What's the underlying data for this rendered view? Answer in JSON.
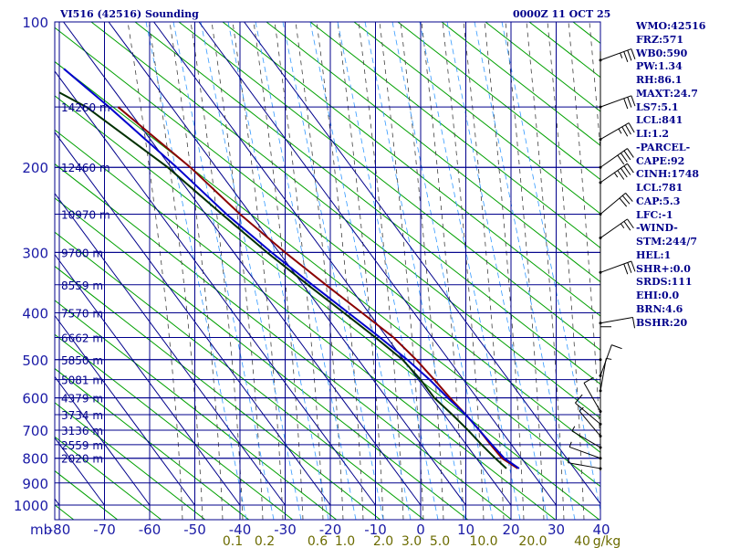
{
  "header": {
    "title": "VI516 (42516) Sounding",
    "datetime": "0000Z 11 OCT 25"
  },
  "stats": [
    "WMO:42516",
    "FRZ:571",
    "WB0:590",
    "PW:1.34",
    "RH:86.1",
    "MAXT:24.7",
    "LS7:5.1",
    "LCL:841",
    "LI:1.2",
    "-PARCEL-",
    "CAPE:92",
    "CINH:1748",
    "LCL:781",
    "CAP:5.3",
    "LFC:-1",
    "-WIND-",
    "STM:244/7",
    "HEL:1",
    "SHR+:0.0",
    "SRDS:111",
    "EHI:0.0",
    "BRN:4.6",
    "BSHR:20"
  ],
  "colors": {
    "grid": "#00008b",
    "isotherm": "#00008b",
    "dry_adiabat": "#00a000",
    "moist_adiabat": "#404040",
    "mixing_ratio": "#3399ff",
    "temperature": "#8b0000",
    "parcel": "#0000cd",
    "dewpoint": "#003000",
    "mixing_label": "#6b6b00",
    "background": "#ffffff"
  },
  "chart_data": {
    "type": "line",
    "subtype": "skew-t log-p sounding",
    "y_axis": {
      "unit_label": "mb",
      "ticks": [
        100,
        200,
        300,
        400,
        500,
        600,
        700,
        800,
        900,
        1000
      ],
      "scale": "log",
      "range": [
        100,
        1000
      ]
    },
    "x_axis": {
      "unit": "C",
      "ticks": [
        -80,
        -70,
        -60,
        -50,
        -40,
        -30,
        -20,
        -10,
        0,
        10,
        20,
        30,
        40
      ],
      "range": [
        -80,
        40
      ]
    },
    "height_labels": [
      {
        "p": 150,
        "label": "14260 m"
      },
      {
        "p": 200,
        "label": "12460 m"
      },
      {
        "p": 250,
        "label": "10970 m"
      },
      {
        "p": 300,
        "label": "9700 m"
      },
      {
        "p": 350,
        "label": "8559 m"
      },
      {
        "p": 400,
        "label": "7570 m"
      },
      {
        "p": 450,
        "label": "6662 m"
      },
      {
        "p": 500,
        "label": "5850 m"
      },
      {
        "p": 550,
        "label": "5081 m"
      },
      {
        "p": 600,
        "label": "4379 m"
      },
      {
        "p": 650,
        "label": "3734 m"
      },
      {
        "p": 700,
        "label": "3136 m"
      },
      {
        "p": 750,
        "label": "2559 m"
      },
      {
        "p": 800,
        "label": "2020 m"
      }
    ],
    "mixing_ratio_labels": [
      "0.1",
      "0.2",
      "0.6",
      "1.0",
      "2.0",
      "3.0",
      "5.0",
      "10.0",
      "20.0",
      "40",
      "g/kg"
    ],
    "series": [
      {
        "name": "",
        "role": "temperature",
        "points": [
          {
            "p": 150,
            "t": -67
          },
          {
            "p": 200,
            "t": -51
          },
          {
            "p": 250,
            "t": -40
          },
          {
            "p": 300,
            "t": -30
          },
          {
            "p": 350,
            "t": -21
          },
          {
            "p": 400,
            "t": -13
          },
          {
            "p": 450,
            "t": -6
          },
          {
            "p": 500,
            "t": -1
          },
          {
            "p": 550,
            "t": 3
          },
          {
            "p": 600,
            "t": 6.5
          },
          {
            "p": 650,
            "t": 10
          },
          {
            "p": 700,
            "t": 13
          },
          {
            "p": 750,
            "t": 15.5
          },
          {
            "p": 800,
            "t": 18
          },
          {
            "p": 840,
            "t": 21.5
          }
        ]
      },
      {
        "name": "",
        "role": "parcel",
        "points": [
          {
            "p": 125,
            "t": -79
          },
          {
            "p": 150,
            "t": -69
          },
          {
            "p": 200,
            "t": -54
          },
          {
            "p": 250,
            "t": -43
          },
          {
            "p": 300,
            "t": -33
          },
          {
            "p": 350,
            "t": -24
          },
          {
            "p": 400,
            "t": -16
          },
          {
            "p": 450,
            "t": -9
          },
          {
            "p": 500,
            "t": -3
          },
          {
            "p": 550,
            "t": 2
          },
          {
            "p": 600,
            "t": 6
          },
          {
            "p": 650,
            "t": 10
          },
          {
            "p": 700,
            "t": 13
          },
          {
            "p": 750,
            "t": 15.8
          },
          {
            "p": 800,
            "t": 18.5
          },
          {
            "p": 840,
            "t": 21.8
          }
        ]
      },
      {
        "name": "",
        "role": "dewpoint",
        "points": [
          {
            "p": 140,
            "t": -80
          },
          {
            "p": 150,
            "t": -74
          },
          {
            "p": 200,
            "t": -56
          },
          {
            "p": 250,
            "t": -44
          },
          {
            "p": 300,
            "t": -34
          },
          {
            "p": 350,
            "t": -25
          },
          {
            "p": 400,
            "t": -17
          },
          {
            "p": 450,
            "t": -10
          },
          {
            "p": 500,
            "t": -4
          },
          {
            "p": 550,
            "t": 0
          },
          {
            "p": 600,
            "t": 3
          },
          {
            "p": 650,
            "t": 7
          },
          {
            "p": 700,
            "t": 10.5
          },
          {
            "p": 750,
            "t": 13.5
          },
          {
            "p": 800,
            "t": 16.5
          },
          {
            "p": 840,
            "t": 19
          }
        ]
      }
    ],
    "wind_barbs": [
      {
        "p": 120,
        "dir": 250,
        "spd": 35
      },
      {
        "p": 150,
        "dir": 250,
        "spd": 30
      },
      {
        "p": 175,
        "dir": 240,
        "spd": 35
      },
      {
        "p": 200,
        "dir": 235,
        "spd": 40
      },
      {
        "p": 215,
        "dir": 235,
        "spd": 45
      },
      {
        "p": 250,
        "dir": 230,
        "spd": 30
      },
      {
        "p": 280,
        "dir": 235,
        "spd": 25
      },
      {
        "p": 330,
        "dir": 250,
        "spd": 30
      },
      {
        "p": 420,
        "dir": 260,
        "spd": 10
      },
      {
        "p": 500,
        "dir": 180,
        "spd": 10
      },
      {
        "p": 540,
        "dir": 200,
        "spd": 10
      },
      {
        "p": 580,
        "dir": 190,
        "spd": 5
      },
      {
        "p": 640,
        "dir": 150,
        "spd": 10
      },
      {
        "p": 680,
        "dir": 130,
        "spd": 10
      },
      {
        "p": 720,
        "dir": 140,
        "spd": 5
      },
      {
        "p": 760,
        "dir": 120,
        "spd": 5
      },
      {
        "p": 800,
        "dir": 110,
        "spd": 5
      },
      {
        "p": 840,
        "dir": 100,
        "spd": 5
      }
    ],
    "grid": true
  }
}
